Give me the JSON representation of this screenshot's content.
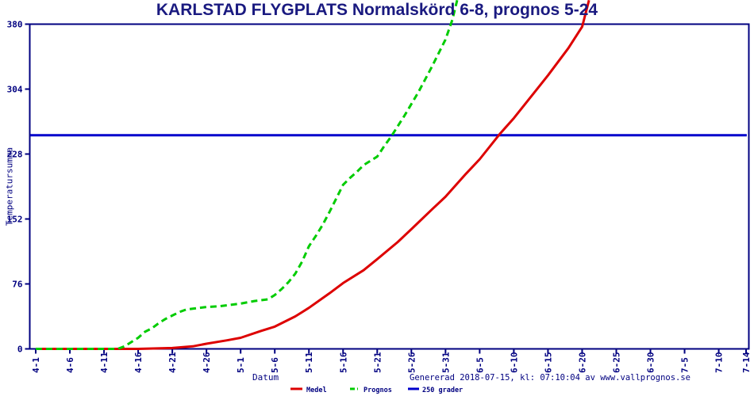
{
  "title": "KARLSTAD FLYGPLATS Normalskörd 6-8, prognos 5-24",
  "footer": "Genererad 2018-07-15, kl: 07:10:04 av www.vallprognos.se",
  "axis": {
    "x_label": "Datum",
    "y_label": "Temperatursumma"
  },
  "colors": {
    "navy_text": "#000080",
    "frame": "#000080",
    "medel": "#DD0000",
    "prognos": "#00CC00",
    "threshold": "#0000CC"
  },
  "chart_data": {
    "type": "line",
    "title": "KARLSTAD FLYGPLATS Normalskörd 6-8, prognos 5-24",
    "xlabel": "Datum",
    "ylabel": "Temperatursumma",
    "ylim": [
      0,
      380
    ],
    "y_ticks": [
      0,
      76,
      152,
      228,
      304,
      380
    ],
    "x_ticks": [
      {
        "label": "4-1",
        "day": 0
      },
      {
        "label": "4-6",
        "day": 5
      },
      {
        "label": "4-11",
        "day": 10
      },
      {
        "label": "4-16",
        "day": 15
      },
      {
        "label": "4-21",
        "day": 20
      },
      {
        "label": "4-26",
        "day": 25
      },
      {
        "label": "5-1",
        "day": 30
      },
      {
        "label": "5-6",
        "day": 35
      },
      {
        "label": "5-11",
        "day": 40
      },
      {
        "label": "5-16",
        "day": 45
      },
      {
        "label": "5-21",
        "day": 50
      },
      {
        "label": "5-26",
        "day": 55
      },
      {
        "label": "5-31",
        "day": 60
      },
      {
        "label": "6-5",
        "day": 65
      },
      {
        "label": "6-10",
        "day": 70
      },
      {
        "label": "6-15",
        "day": 75
      },
      {
        "label": "6-20",
        "day": 80
      },
      {
        "label": "6-25",
        "day": 85
      },
      {
        "label": "6-30",
        "day": 90
      },
      {
        "label": "7-5",
        "day": 95
      },
      {
        "label": "7-10",
        "day": 100
      },
      {
        "label": "7-14",
        "day": 104
      }
    ],
    "grid": false,
    "legend_position": "bottom-center",
    "legend": [
      "Medel",
      "Prognos",
      "250 grader"
    ],
    "series": [
      {
        "name": "250 grader",
        "color": "#0000CC",
        "style": "solid",
        "width": 3,
        "points": [
          [
            -0.8,
            250
          ],
          [
            104.1,
            250
          ]
        ]
      },
      {
        "name": "Medel",
        "color": "#DD0000",
        "style": "solid",
        "width": 3,
        "points": [
          [
            0,
            0
          ],
          [
            5,
            0
          ],
          [
            10,
            0
          ],
          [
            15,
            0
          ],
          [
            20,
            1
          ],
          [
            23,
            3
          ],
          [
            25,
            6
          ],
          [
            28,
            10
          ],
          [
            30,
            13
          ],
          [
            33,
            21
          ],
          [
            35,
            26
          ],
          [
            38,
            38
          ],
          [
            40,
            48
          ],
          [
            43,
            65
          ],
          [
            45,
            77
          ],
          [
            48,
            92
          ],
          [
            50,
            105
          ],
          [
            53,
            125
          ],
          [
            55,
            140
          ],
          [
            58,
            163
          ],
          [
            60,
            178
          ],
          [
            63,
            205
          ],
          [
            65,
            222
          ],
          [
            68,
            252
          ],
          [
            70,
            270
          ],
          [
            73,
            300
          ],
          [
            75,
            320
          ],
          [
            78,
            352
          ],
          [
            80,
            377
          ],
          [
            81,
            408
          ]
        ]
      },
      {
        "name": "Prognos",
        "color": "#00CC00",
        "style": "dashed",
        "width": 3,
        "points": [
          [
            0,
            0
          ],
          [
            5,
            0
          ],
          [
            10,
            0
          ],
          [
            12,
            0
          ],
          [
            13,
            3
          ],
          [
            14,
            8
          ],
          [
            15,
            13
          ],
          [
            16,
            20
          ],
          [
            17,
            24
          ],
          [
            18,
            30
          ],
          [
            19,
            35
          ],
          [
            20,
            39
          ],
          [
            21,
            43
          ],
          [
            22,
            46
          ],
          [
            23,
            47
          ],
          [
            25,
            49
          ],
          [
            27,
            50
          ],
          [
            30,
            53
          ],
          [
            32,
            56
          ],
          [
            34,
            58
          ],
          [
            35,
            63
          ],
          [
            36,
            70
          ],
          [
            37,
            78
          ],
          [
            38,
            88
          ],
          [
            39,
            102
          ],
          [
            40,
            120
          ],
          [
            41,
            132
          ],
          [
            42,
            145
          ],
          [
            43,
            160
          ],
          [
            44,
            176
          ],
          [
            45,
            192
          ],
          [
            46,
            200
          ],
          [
            47,
            207
          ],
          [
            48,
            215
          ],
          [
            50,
            225
          ],
          [
            51,
            237
          ],
          [
            52,
            248
          ],
          [
            54,
            273
          ],
          [
            56,
            300
          ],
          [
            58,
            330
          ],
          [
            60,
            362
          ],
          [
            61,
            385
          ],
          [
            61.7,
            408
          ]
        ]
      }
    ]
  }
}
